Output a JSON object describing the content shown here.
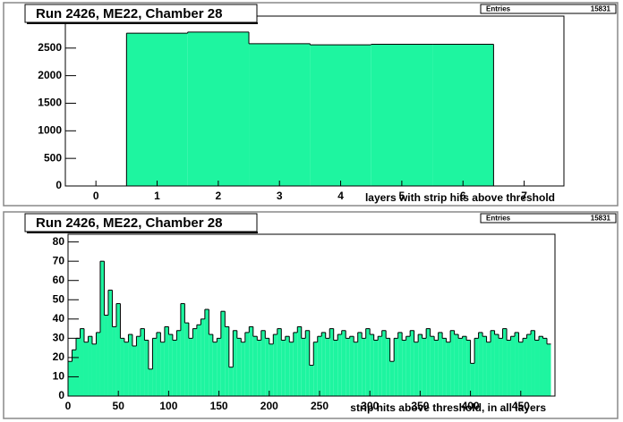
{
  "chart_data": [
    {
      "type": "histogram",
      "title": "Run 2426, ME22, Chamber 28",
      "stats_label": "Entries",
      "stats_value": "15831",
      "xlabel": "layers with strip hits above threshold",
      "color": "#1ef5a0",
      "bins": [
        -0.5,
        0.5,
        1.5,
        2.5,
        3.5,
        4.5,
        5.5,
        6.5,
        7.5
      ],
      "values": [
        0,
        2770,
        2790,
        2580,
        2560,
        2570,
        2570,
        0
      ],
      "xlim": [
        -0.5,
        7.65
      ],
      "xticks": [
        0,
        1,
        2,
        3,
        4,
        5,
        6,
        7
      ],
      "ylim": [
        0,
        3080
      ],
      "yticks": [
        0,
        500,
        1000,
        1500,
        2000,
        2500
      ]
    },
    {
      "type": "histogram",
      "title": "Run 2426, ME22, Chamber 28",
      "stats_label": "Entries",
      "stats_value": "15831",
      "xlabel": "strip hits above threshold, in all layers",
      "color": "#1ef5a0",
      "bins": [
        0,
        4,
        8,
        12,
        16,
        20,
        24,
        28,
        32,
        36,
        40,
        44,
        48,
        52,
        56,
        60,
        64,
        68,
        72,
        76,
        80,
        84,
        88,
        92,
        96,
        100,
        104,
        108,
        112,
        116,
        120,
        124,
        128,
        132,
        136,
        140,
        144,
        148,
        152,
        156,
        160,
        164,
        168,
        172,
        176,
        180,
        184,
        188,
        192,
        196,
        200,
        204,
        208,
        212,
        216,
        220,
        224,
        228,
        232,
        236,
        240,
        244,
        248,
        252,
        256,
        260,
        264,
        268,
        272,
        276,
        280,
        284,
        288,
        292,
        296,
        300,
        304,
        308,
        312,
        316,
        320,
        324,
        328,
        332,
        336,
        340,
        344,
        348,
        352,
        356,
        360,
        364,
        368,
        372,
        376,
        380,
        384,
        388,
        392,
        396,
        400,
        404,
        408,
        412,
        416,
        420,
        424,
        428,
        432,
        436,
        440,
        444,
        448,
        452,
        456,
        460,
        464,
        468,
        472,
        476,
        480
      ],
      "values": [
        18,
        24,
        30,
        35,
        28,
        31,
        27,
        33,
        70,
        42,
        55,
        36,
        48,
        30,
        28,
        32,
        26,
        31,
        35,
        29,
        14,
        30,
        33,
        28,
        36,
        32,
        29,
        34,
        48,
        38,
        30,
        35,
        37,
        40,
        45,
        32,
        28,
        30,
        44,
        36,
        15,
        34,
        30,
        28,
        33,
        36,
        31,
        29,
        34,
        30,
        27,
        32,
        35,
        29,
        31,
        28,
        33,
        36,
        30,
        34,
        16,
        28,
        31,
        33,
        30,
        35,
        29,
        32,
        34,
        30,
        31,
        28,
        33,
        30,
        35,
        32,
        29,
        31,
        34,
        30,
        18,
        30,
        33,
        29,
        31,
        34,
        28,
        32,
        30,
        35,
        31,
        29,
        33,
        30,
        28,
        34,
        32,
        30,
        31,
        29,
        17,
        30,
        33,
        31,
        28,
        34,
        32,
        30,
        35,
        29,
        31,
        33,
        28,
        30,
        32,
        34,
        29,
        31,
        30,
        27
      ],
      "xlim": [
        0,
        484
      ],
      "xticks": [
        0,
        50,
        100,
        150,
        200,
        250,
        300,
        350,
        400,
        450
      ],
      "ylim": [
        0,
        84
      ],
      "yticks": [
        0,
        10,
        20,
        30,
        40,
        50,
        60,
        70,
        80
      ]
    }
  ]
}
